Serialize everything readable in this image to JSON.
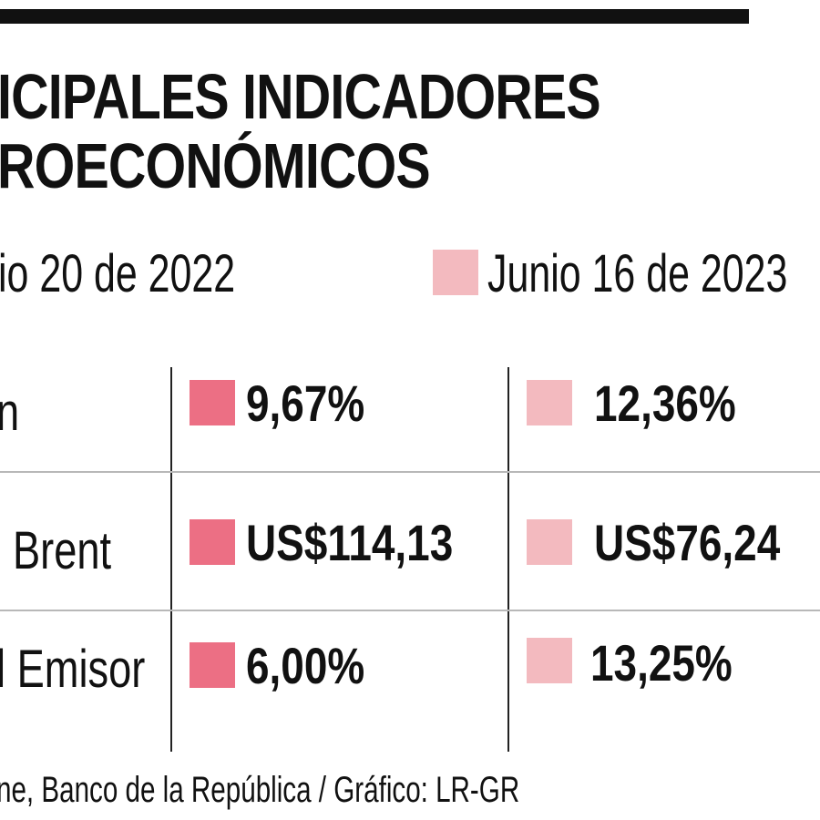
{
  "colors": {
    "series_2022": "#ec6f84",
    "series_2023": "#f3babf",
    "rule": "#111111"
  },
  "title": {
    "line1": "ICIPALES INDICADORES",
    "line2": "ROECONÓMICOS"
  },
  "chart_data": {
    "type": "table",
    "series": [
      {
        "name": "io 20 de 2022",
        "values": [
          "9,67%",
          "US$114,13",
          "6,00%"
        ]
      },
      {
        "name": "Junio 16 de 2023",
        "values": [
          "12,36%",
          "US$76,24",
          "13,25%"
        ]
      }
    ],
    "rows": [
      {
        "label": "n",
        "v2022": "9,67%",
        "v2023": "12,36%"
      },
      {
        "label": "Brent",
        "v2022": "US$114,13",
        "v2023": "US$76,24"
      },
      {
        "label": "l Emisor",
        "v2022": "6,00%",
        "v2023": "13,25%"
      }
    ]
  },
  "source": "ne, Banco de la República / Gráfico: LR-GR"
}
